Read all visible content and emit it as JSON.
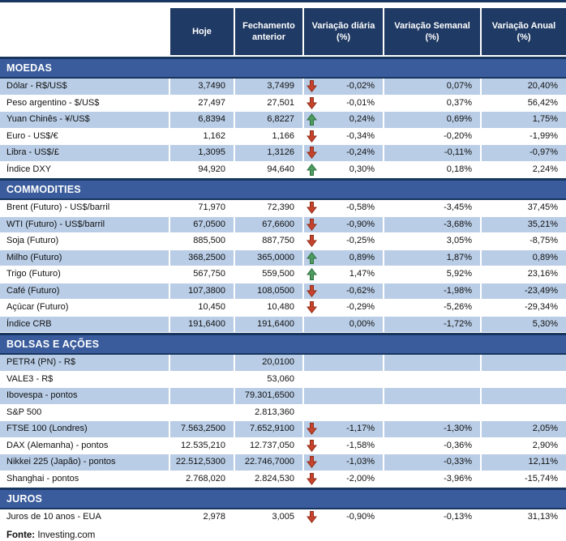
{
  "colors": {
    "header_bg": "#1F3A64",
    "band_bg": "#3A5C9C",
    "band_edge": "#17355E",
    "row_stripe": "#B9CDE6",
    "arrow_up": "#4E9C60",
    "arrow_down": "#C8432C"
  },
  "header": {
    "columns": [
      "Hoje",
      "Fechamento anterior",
      "Variação diária (%)",
      "Variação Semanal (%)",
      "Variação Anual (%)"
    ]
  },
  "sections": [
    {
      "title": "MOEDAS",
      "rows": [
        {
          "label": "Dólar - R$/US$",
          "hoje": "3,7490",
          "fechamento_anterior": "3,7499",
          "arrow": "down",
          "variacao_diaria": "-0,02%",
          "variacao_semanal": "0,07%",
          "variacao_anual": "20,40%",
          "shaded": true
        },
        {
          "label": "Peso argentino - $/US$",
          "hoje": "27,497",
          "fechamento_anterior": "27,501",
          "arrow": "down",
          "variacao_diaria": "-0,01%",
          "variacao_semanal": "0,37%",
          "variacao_anual": "56,42%",
          "shaded": false
        },
        {
          "label": "Yuan Chinês - ¥/US$",
          "hoje": "6,8394",
          "fechamento_anterior": "6,8227",
          "arrow": "up",
          "variacao_diaria": "0,24%",
          "variacao_semanal": "0,69%",
          "variacao_anual": "1,75%",
          "shaded": true
        },
        {
          "label": "Euro - US$/€",
          "hoje": "1,162",
          "fechamento_anterior": "1,166",
          "arrow": "down",
          "variacao_diaria": "-0,34%",
          "variacao_semanal": "-0,20%",
          "variacao_anual": "-1,99%",
          "shaded": false
        },
        {
          "label": "Libra - US$/£",
          "hoje": "1,3095",
          "fechamento_anterior": "1,3126",
          "arrow": "down",
          "variacao_diaria": "-0,24%",
          "variacao_semanal": "-0,11%",
          "variacao_anual": "-0,97%",
          "shaded": true
        },
        {
          "label": "Índice DXY",
          "hoje": "94,920",
          "fechamento_anterior": "94,640",
          "arrow": "up",
          "variacao_diaria": "0,30%",
          "variacao_semanal": "0,18%",
          "variacao_anual": "2,24%",
          "shaded": false
        }
      ]
    },
    {
      "title": "COMMODITIES",
      "rows": [
        {
          "label": "Brent (Futuro) - US$/barril",
          "hoje": "71,970",
          "fechamento_anterior": "72,390",
          "arrow": "down",
          "variacao_diaria": "-0,58%",
          "variacao_semanal": "-3,45%",
          "variacao_anual": "37,45%",
          "shaded": false
        },
        {
          "label": "WTI (Futuro) - US$/barril",
          "hoje": "67,0500",
          "fechamento_anterior": "67,6600",
          "arrow": "down",
          "variacao_diaria": "-0,90%",
          "variacao_semanal": "-3,68%",
          "variacao_anual": "35,21%",
          "shaded": true
        },
        {
          "label": "Soja (Futuro)",
          "hoje": "885,500",
          "fechamento_anterior": "887,750",
          "arrow": "down",
          "variacao_diaria": "-0,25%",
          "variacao_semanal": "3,05%",
          "variacao_anual": "-8,75%",
          "shaded": false
        },
        {
          "label": "Milho (Futuro)",
          "hoje": "368,2500",
          "fechamento_anterior": "365,0000",
          "arrow": "up",
          "variacao_diaria": "0,89%",
          "variacao_semanal": "1,87%",
          "variacao_anual": "0,89%",
          "shaded": true
        },
        {
          "label": "Trigo (Futuro)",
          "hoje": "567,750",
          "fechamento_anterior": "559,500",
          "arrow": "up",
          "variacao_diaria": "1,47%",
          "variacao_semanal": "5,92%",
          "variacao_anual": "23,16%",
          "shaded": false
        },
        {
          "label": "Café (Futuro)",
          "hoje": "107,3800",
          "fechamento_anterior": "108,0500",
          "arrow": "down",
          "variacao_diaria": "-0,62%",
          "variacao_semanal": "-1,98%",
          "variacao_anual": "-23,49%",
          "shaded": true
        },
        {
          "label": "Açúcar (Futuro)",
          "hoje": "10,450",
          "fechamento_anterior": "10,480",
          "arrow": "down",
          "variacao_diaria": "-0,29%",
          "variacao_semanal": "-5,26%",
          "variacao_anual": "-29,34%",
          "shaded": false
        },
        {
          "label": "Índice CRB",
          "hoje": "191,6400",
          "fechamento_anterior": "191,6400",
          "arrow": "",
          "variacao_diaria": "0,00%",
          "variacao_semanal": "-1,72%",
          "variacao_anual": "5,30%",
          "shaded": true
        }
      ]
    },
    {
      "title": "BOLSAS E AÇÕES",
      "rows": [
        {
          "label": "PETR4 (PN) - R$",
          "hoje": "",
          "fechamento_anterior": "20,0100",
          "arrow": "",
          "variacao_diaria": "",
          "variacao_semanal": "",
          "variacao_anual": "",
          "shaded": true
        },
        {
          "label": "VALE3 - R$",
          "hoje": "",
          "fechamento_anterior": "53,060",
          "arrow": "",
          "variacao_diaria": "",
          "variacao_semanal": "",
          "variacao_anual": "",
          "shaded": false
        },
        {
          "label": "Ibovespa - pontos",
          "hoje": "",
          "fechamento_anterior": "79.301,6500",
          "arrow": "",
          "variacao_diaria": "",
          "variacao_semanal": "",
          "variacao_anual": "",
          "shaded": true
        },
        {
          "label": "S&P 500",
          "hoje": "",
          "fechamento_anterior": "2.813,360",
          "arrow": "",
          "variacao_diaria": "",
          "variacao_semanal": "",
          "variacao_anual": "",
          "shaded": false
        },
        {
          "label": "FTSE 100 (Londres)",
          "hoje": "7.563,2500",
          "fechamento_anterior": "7.652,9100",
          "arrow": "down",
          "variacao_diaria": "-1,17%",
          "variacao_semanal": "-1,30%",
          "variacao_anual": "2,05%",
          "shaded": true
        },
        {
          "label": "DAX (Alemanha) - pontos",
          "hoje": "12.535,210",
          "fechamento_anterior": "12.737,050",
          "arrow": "down",
          "variacao_diaria": "-1,58%",
          "variacao_semanal": "-0,36%",
          "variacao_anual": "2,90%",
          "shaded": false
        },
        {
          "label": "Nikkei 225 (Japão) - pontos",
          "hoje": "22.512,5300",
          "fechamento_anterior": "22.746,7000",
          "arrow": "down",
          "variacao_diaria": "-1,03%",
          "variacao_semanal": "-0,33%",
          "variacao_anual": "12,11%",
          "shaded": true
        },
        {
          "label": "Shanghai - pontos",
          "hoje": "2.768,020",
          "fechamento_anterior": "2.824,530",
          "arrow": "down",
          "variacao_diaria": "-2,00%",
          "variacao_semanal": "-3,96%",
          "variacao_anual": "-15,74%",
          "shaded": false
        }
      ]
    },
    {
      "title": "JUROS",
      "rows": [
        {
          "label": "Juros de 10 anos - EUA",
          "hoje": "2,978",
          "fechamento_anterior": "3,005",
          "arrow": "down",
          "variacao_diaria": "-0,90%",
          "variacao_semanal": "-0,13%",
          "variacao_anual": "31,13%",
          "shaded": false
        }
      ]
    }
  ],
  "footer": {
    "source_label": "Fonte:",
    "source_value": " Investing.com"
  }
}
